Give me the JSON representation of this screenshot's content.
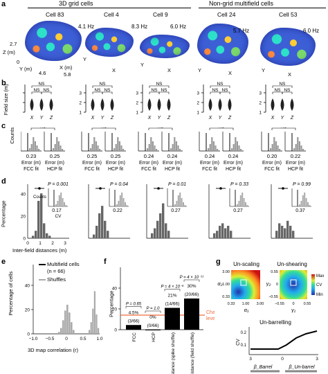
{
  "panel_labels": {
    "a": "a",
    "b": "b",
    "c": "c",
    "d": "d",
    "e": "e",
    "f": "f",
    "g": "g"
  },
  "headers": {
    "grid": "3D grid cells",
    "nongrid": "Non-grid multifield cells"
  },
  "cells": [
    {
      "name": "Cell 83",
      "rate": "4.1 Hz"
    },
    {
      "name": "Cell 4",
      "rate": "8.3 Hz"
    },
    {
      "name": "Cell 9",
      "rate": "6.0 Hz"
    },
    {
      "name": "Cell 24",
      "rate": "5.7 Hz"
    },
    {
      "name": "Cell 53",
      "rate": "6.0 Hz"
    }
  ],
  "panel_a": {
    "z_label": "Z (m)",
    "y_label": "Y (m)",
    "x_label": "X (m)",
    "z_val": "2.7",
    "y_val": "4.6",
    "x_val": "5.8",
    "zero": "0",
    "y_short": "Y",
    "x_short": "X"
  },
  "panel_b": {
    "ylabel": "Field size (m)",
    "ns": "NS",
    "xt": [
      "X",
      "Y",
      "Z"
    ],
    "yt": [
      "1",
      "2",
      "3"
    ]
  },
  "panel_c": {
    "counts": "Counts",
    "ns": "NS",
    "error_fcc": "Error (m)\nFCC fit",
    "error_hcp": "Error (m)\nHCP fit",
    "fcc_vals": [
      "0.23",
      "0.25",
      "0.24",
      "0.24",
      "0.20"
    ],
    "hcp_vals": [
      "0.25",
      "0.25",
      "0.24",
      "0.24",
      "0.22"
    ],
    "err_m": "Error (m)",
    "fcc": "FCC fit",
    "hcp": "HCP fit"
  },
  "panel_d": {
    "ylabel": "Percentage",
    "xlabel": "Inter-field distances (m)",
    "p_vals": [
      "P = 0.001",
      "P = 0.04",
      "P = 0.01",
      "P = 0.33",
      "P = 0.99"
    ],
    "cv_vals": [
      "0.17",
      "0.22",
      "0.27",
      "0.27",
      "0.37"
    ],
    "inset_counts": "Counts",
    "inset_cv": "CV",
    "yt": [
      "0",
      "20",
      "40"
    ],
    "xt": [
      "0",
      "1",
      "2",
      "3"
    ]
  },
  "panel_e": {
    "ylabel": "Percentage of cells",
    "xlabel": "3D map correlation (r)",
    "legend_multi": "Multifield cells",
    "legend_n": "(n = 66)",
    "legend_shuf": "Shuffles",
    "xt": [
      "−1.0",
      "−0.5",
      "0",
      "0.5",
      "1.0"
    ],
    "yt": [
      "0",
      "20",
      "40"
    ]
  },
  "panel_f": {
    "ylabel": "Percentage",
    "chance": "Chance level",
    "cats": [
      "FCC",
      "HCP",
      "Fixed distance (spike shuffle)",
      "Fixed distance (field shuffle)"
    ],
    "pvals": [
      "P = 0.65",
      "P = 1.0",
      "P = 4 × 10⁻⁶",
      "P = 4 × 10⁻¹¹"
    ],
    "pcts": [
      "4.5%",
      "0%",
      "21%",
      "30%"
    ],
    "fracs": [
      "(3/66)",
      "(0/66)",
      "(14/66)",
      "(20/66)"
    ],
    "yt": [
      "0",
      "20",
      "40"
    ]
  },
  "panel_g": {
    "unscaling": "Un-scaling",
    "unshearing": "Un-shearing",
    "unbarrelling": "Un-barrelling",
    "alpha1": "α₁",
    "alpha2": "α₂",
    "gamma1": "γ₁",
    "gamma2": "γ₂",
    "a_ticks": [
      "0.33",
      "1.00",
      "3.00"
    ],
    "g_ticks": [
      "−0.55",
      "0",
      "0.55"
    ],
    "max": "Max",
    "cv": "CV",
    "min": "Min",
    "barrel": "β_Barrel",
    "unbarrel": "β_Un-barrel",
    "b_ticks": [
      "3",
      "0",
      "3"
    ],
    "cv_ticks": [
      "0.1",
      "0.2"
    ]
  },
  "chart_data": [
    {
      "type": "bar",
      "title": "Percentage of cells",
      "categories": [
        "FCC",
        "HCP",
        "Fixed distance (spike shuffle)",
        "Fixed distance (field shuffle)"
      ],
      "values": [
        4.5,
        0,
        21,
        30
      ],
      "ylim": [
        0,
        60
      ],
      "ylabel": "Percentage"
    }
  ]
}
